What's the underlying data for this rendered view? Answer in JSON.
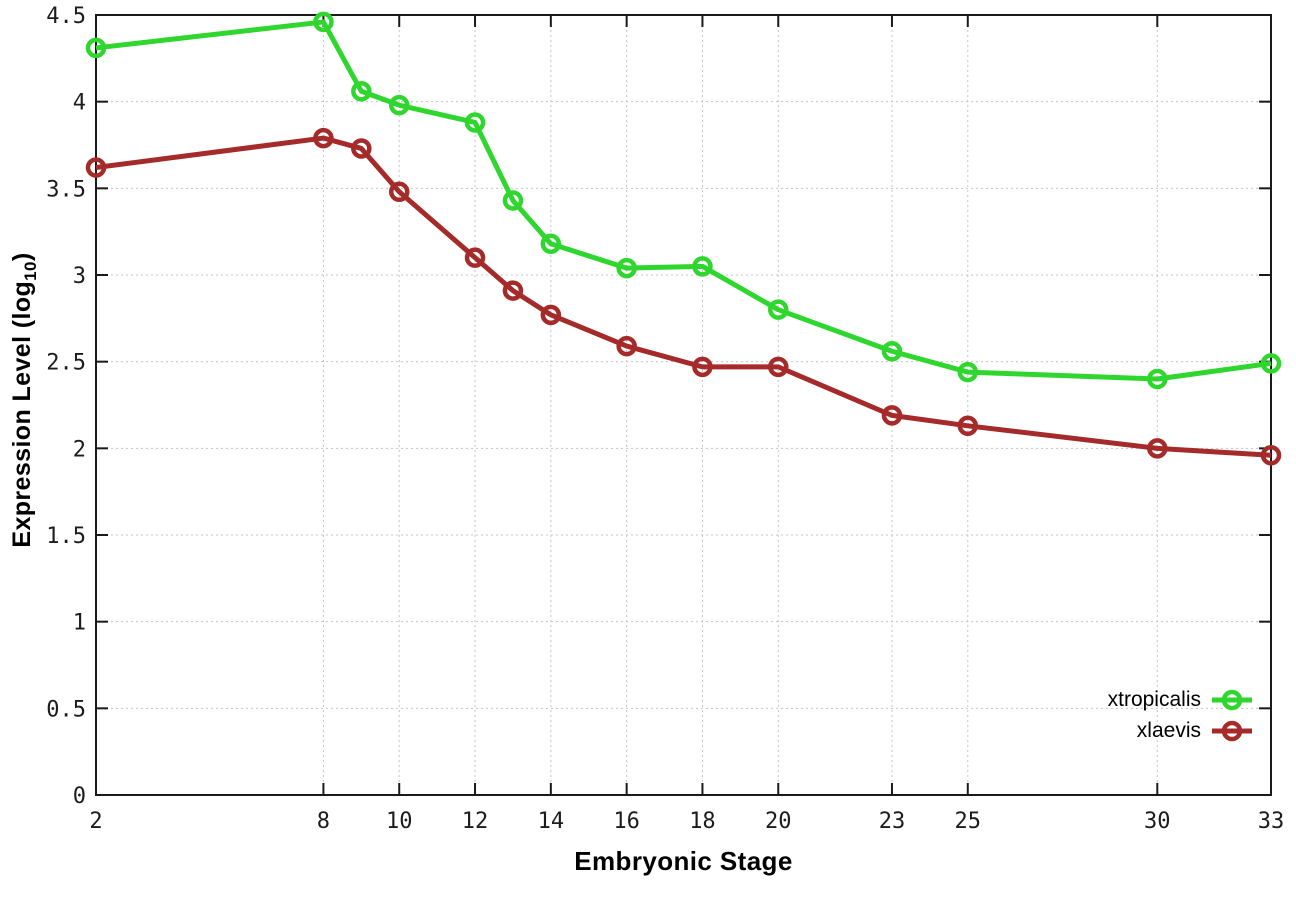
{
  "chart_data": {
    "type": "line",
    "title": "",
    "xlabel": "Embryonic Stage",
    "ylabel": "Expression Level (log10)",
    "ylabel_parts": {
      "prefix": "Expression Level (log",
      "subscript": "10",
      "suffix": ")"
    },
    "xlim": [
      2,
      33
    ],
    "ylim": [
      0,
      4.5
    ],
    "grid": true,
    "legend_position": "inside bottom-right",
    "x": [
      2,
      8,
      9,
      10,
      12,
      13,
      14,
      16,
      18,
      20,
      23,
      25,
      30,
      33
    ],
    "xtick_values": [
      2,
      8,
      10,
      12,
      14,
      16,
      18,
      20,
      23,
      25,
      30,
      33
    ],
    "xtick_labels": [
      "2",
      "8",
      "10",
      "12",
      "14",
      "16",
      "18",
      "20",
      "23",
      "25",
      "30",
      "33"
    ],
    "ytick_values": [
      0,
      0.5,
      1,
      1.5,
      2,
      2.5,
      3,
      3.5,
      4,
      4.5
    ],
    "ytick_labels": [
      "0",
      "0.5",
      "1",
      "1.5",
      "2",
      "2.5",
      "3",
      "3.5",
      "4",
      "4.5"
    ],
    "series": [
      {
        "name": "xtropicalis",
        "color": "#2ed62e",
        "marker": "open-circle",
        "values": [
          4.31,
          4.46,
          4.06,
          3.98,
          3.88,
          3.43,
          3.18,
          3.04,
          3.05,
          2.8,
          2.56,
          2.44,
          2.4,
          2.49
        ]
      },
      {
        "name": "xlaevis",
        "color": "#a52a2a",
        "marker": "open-circle",
        "values": [
          3.62,
          3.79,
          3.73,
          3.48,
          3.1,
          2.91,
          2.77,
          2.59,
          2.47,
          2.47,
          2.19,
          2.13,
          2.0,
          1.96
        ]
      }
    ]
  },
  "styles": {
    "grid_color": "#c4c4c4",
    "axis_color": "#1a1a1a",
    "tick_label_color": "#1c1c1c",
    "background": "#ffffff"
  }
}
